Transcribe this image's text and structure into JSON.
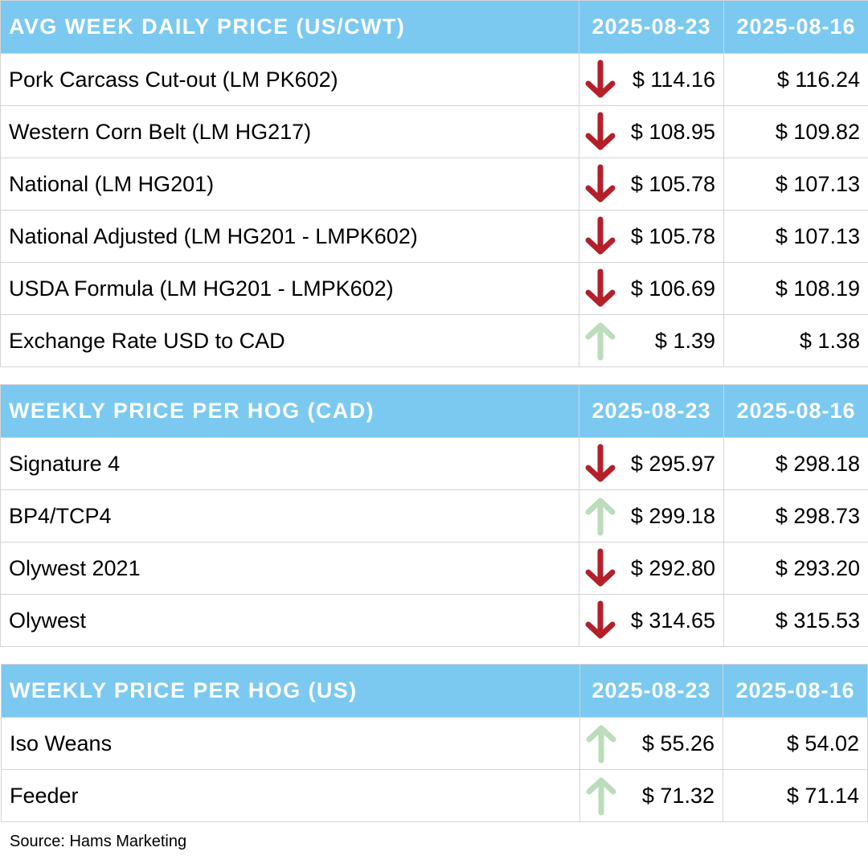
{
  "colors": {
    "header_bg": "#7bc9f0",
    "header_text": "#ffffff",
    "down_arrow": "#b3202a",
    "up_arrow": "#bcdcbc",
    "grid": "#d4d4d4"
  },
  "tables": [
    {
      "title": "AVG WEEK DAILY PRICE (US/CWT)",
      "date_current": "2025-08-23",
      "date_previous": "2025-08-16",
      "rows": [
        {
          "label": "Pork Carcass Cut-out (LM PK602)",
          "current": "$ 114.16",
          "previous": "$ 116.24",
          "trend": "down",
          "icon": "down-arrow-icon"
        },
        {
          "label": "Western Corn Belt (LM HG217)",
          "current": "$ 108.95",
          "previous": "$ 109.82",
          "trend": "down",
          "icon": "down-arrow-icon"
        },
        {
          "label": "National (LM HG201)",
          "current": "$ 105.78",
          "previous": "$ 107.13",
          "trend": "down",
          "icon": "down-arrow-icon"
        },
        {
          "label": "National Adjusted (LM HG201 - LMPK602)",
          "current": "$ 105.78",
          "previous": "$ 107.13",
          "trend": "down",
          "icon": "down-arrow-icon"
        },
        {
          "label": "USDA Formula (LM HG201 - LMPK602)",
          "current": "$ 106.69",
          "previous": "$ 108.19",
          "trend": "down",
          "icon": "down-arrow-icon"
        },
        {
          "label": "Exchange Rate USD to CAD",
          "current": "$ 1.39",
          "previous": "$ 1.38",
          "trend": "up",
          "icon": "up-arrow-icon"
        }
      ]
    },
    {
      "title": "WEEKLY PRICE PER HOG (CAD)",
      "date_current": "2025-08-23",
      "date_previous": "2025-08-16",
      "rows": [
        {
          "label": "Signature 4",
          "current": "$ 295.97",
          "previous": "$ 298.18",
          "trend": "down",
          "icon": "down-arrow-icon"
        },
        {
          "label": "BP4/TCP4",
          "current": "$ 299.18",
          "previous": "$ 298.73",
          "trend": "up",
          "icon": "up-arrow-icon"
        },
        {
          "label": "Olywest 2021",
          "current": "$ 292.80",
          "previous": "$ 293.20",
          "trend": "down",
          "icon": "down-arrow-icon"
        },
        {
          "label": "Olywest",
          "current": "$ 314.65",
          "previous": "$ 315.53",
          "trend": "down",
          "icon": "down-arrow-icon"
        }
      ]
    },
    {
      "title": "WEEKLY PRICE PER HOG (US)",
      "date_current": "2025-08-23",
      "date_previous": "2025-08-16",
      "rows": [
        {
          "label": "Iso Weans",
          "current": "$ 55.26",
          "previous": "$ 54.02",
          "trend": "up",
          "icon": "up-arrow-icon"
        },
        {
          "label": "Feeder",
          "current": "$ 71.32",
          "previous": "$ 71.14",
          "trend": "up",
          "icon": "up-arrow-icon"
        }
      ]
    }
  ],
  "source": "Source: Hams Marketing"
}
